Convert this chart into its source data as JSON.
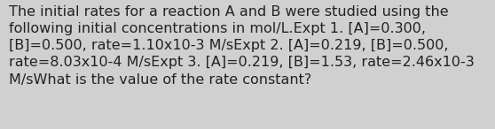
{
  "lines": [
    "The initial rates for a reaction A and B were studied using the",
    "following initial concentrations in mol/L.Expt 1. [A]=0.300,",
    "[B]=0.500, rate=1.10x10-3 M/sExpt 2. [A]=0.219, [B]=0.500,",
    "rate=8.03x10-4 M/sExpt 3. [A]=0.219, [B]=1.53, rate=2.46x10-3",
    "M/sWhat is the value of the rate constant?"
  ],
  "background_color": "#d0d0d0",
  "text_color": "#222222",
  "font_size": 11.5,
  "fig_width": 5.58,
  "fig_height": 1.46,
  "dpi": 100
}
